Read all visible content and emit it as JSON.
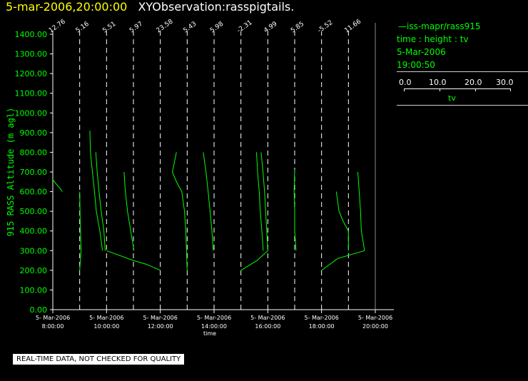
{
  "header": {
    "datetime": "5-mar-2006,20:00:00",
    "plot_name": "XYObservation:rasspigtails."
  },
  "legend": {
    "series": "—iss-mapr/rass915",
    "variables": "time : height : tv",
    "date": "5-Mar-2006",
    "time": "19:00:50",
    "scale_ticks": [
      "0.0",
      "10.0",
      "20.0",
      "30.0"
    ],
    "scale_label": "tv"
  },
  "footer": {
    "qc_note": "REAL-TIME DATA, NOT CHECKED FOR QUALITY"
  },
  "colors": {
    "background": "#000000",
    "trace": "#00ff00",
    "axis": "#ffffff",
    "title_date": "#ffff00"
  },
  "chart_data": {
    "type": "line",
    "ylabel": "915 RASS Altitude (m agl)",
    "xlabel": "time",
    "ylim": [
      0,
      1400
    ],
    "yticks": [
      "0.00",
      "100.00",
      "200.00",
      "300.00",
      "400.00",
      "500.00",
      "600.00",
      "700.00",
      "800.00",
      "900.00",
      "1000.00",
      "1100.00",
      "1200.00",
      "1300.00",
      "1400.00"
    ],
    "xlim": [
      "2006-03-05T08:00",
      "2006-03-05T20:00"
    ],
    "xticks": [
      {
        "t": 8,
        "date": "5- Mar-2006",
        "time": "8:00:00"
      },
      {
        "t": 10,
        "date": "5- Mar-2006",
        "time": "10:00:00"
      },
      {
        "t": 12,
        "date": "5- Mar-2006",
        "time": "12:00:00"
      },
      {
        "t": 14,
        "date": "5- Mar-2006",
        "time": "14:00:00"
      },
      {
        "t": 16,
        "date": "5- Mar-2006",
        "time": "16:00:00"
      },
      {
        "t": 18,
        "date": "5- Mar-2006",
        "time": "18:00:00"
      },
      {
        "t": 20,
        "date": "5- Mar-2006",
        "time": "20:00:00"
      }
    ],
    "tv_scale": [
      0,
      30
    ],
    "profile_times": [
      8,
      9,
      10,
      11,
      12,
      13,
      14,
      15,
      16,
      17,
      18,
      19
    ],
    "profile_labels": [
      "12.76",
      "5.16",
      "5.51",
      "5.97",
      "23.58",
      "5.43",
      "5.98",
      "-2.31",
      "4.99",
      "5.85",
      "-5.52",
      "11.66"
    ],
    "profiles": [
      {
        "base_time": 8,
        "points": [
          [
            0.0,
            660
          ],
          [
            0.12,
            640
          ],
          [
            0.25,
            620
          ],
          [
            0.35,
            600
          ]
        ]
      },
      {
        "base_time": 9,
        "points": [
          [
            0.0,
            600
          ],
          [
            0.02,
            450
          ],
          [
            0.05,
            300
          ],
          [
            0.0,
            200
          ]
        ]
      },
      {
        "base_time": 9,
        "points": [
          [
            0.38,
            910
          ],
          [
            0.4,
            800
          ],
          [
            0.55,
            600
          ],
          [
            0.62,
            500
          ],
          [
            0.75,
            400
          ],
          [
            0.85,
            300
          ]
        ]
      },
      {
        "base_time": 9,
        "points": [
          [
            0.6,
            800
          ],
          [
            0.65,
            700
          ],
          [
            0.72,
            600
          ],
          [
            0.8,
            500
          ],
          [
            0.9,
            400
          ],
          [
            0.95,
            300
          ]
        ]
      },
      {
        "base_time": 10,
        "points": [
          [
            0.0,
            300
          ],
          [
            1.0,
            250
          ],
          [
            1.5,
            230
          ],
          [
            2.0,
            200
          ]
        ]
      },
      {
        "base_time": 10,
        "points": [
          [
            0.65,
            700
          ],
          [
            0.7,
            600
          ],
          [
            0.78,
            500
          ],
          [
            0.9,
            400
          ],
          [
            1.02,
            300
          ]
        ]
      },
      {
        "base_time": 12,
        "points": [
          [
            0.45,
            700
          ],
          [
            0.6,
            800
          ]
        ]
      },
      {
        "base_time": 12,
        "points": [
          [
            0.45,
            700
          ],
          [
            0.6,
            650
          ],
          [
            0.8,
            600
          ],
          [
            0.9,
            500
          ],
          [
            0.95,
            400
          ],
          [
            1.0,
            200
          ]
        ]
      },
      {
        "base_time": 13,
        "points": [
          [
            0.6,
            800
          ],
          [
            0.7,
            700
          ],
          [
            0.78,
            600
          ],
          [
            0.85,
            500
          ],
          [
            0.92,
            400
          ],
          [
            0.97,
            300
          ]
        ]
      },
      {
        "base_time": 15,
        "points": [
          [
            0.0,
            200
          ],
          [
            0.6,
            250
          ],
          [
            1.0,
            300
          ]
        ]
      },
      {
        "base_time": 15,
        "points": [
          [
            0.58,
            800
          ],
          [
            0.62,
            700
          ],
          [
            0.68,
            600
          ],
          [
            0.72,
            500
          ],
          [
            0.78,
            400
          ],
          [
            0.83,
            300
          ]
        ]
      },
      {
        "base_time": 15,
        "points": [
          [
            0.75,
            800
          ],
          [
            0.82,
            700
          ],
          [
            0.88,
            600
          ],
          [
            0.92,
            500
          ],
          [
            0.96,
            400
          ],
          [
            1.0,
            300
          ]
        ]
      },
      {
        "base_time": 17,
        "points": [
          [
            0.0,
            710
          ],
          [
            -0.02,
            600
          ],
          [
            0.0,
            500
          ],
          [
            0.0,
            400
          ],
          [
            0.05,
            300
          ]
        ]
      },
      {
        "base_time": 18,
        "points": [
          [
            0.0,
            200
          ],
          [
            0.6,
            260
          ],
          [
            1.6,
            300
          ]
        ]
      },
      {
        "base_time": 18,
        "points": [
          [
            0.55,
            600
          ],
          [
            0.65,
            500
          ],
          [
            0.8,
            450
          ],
          [
            1.0,
            400
          ],
          [
            1.0,
            300
          ]
        ]
      },
      {
        "base_time": 19,
        "points": [
          [
            0.35,
            700
          ],
          [
            0.4,
            600
          ],
          [
            0.45,
            500
          ],
          [
            0.48,
            400
          ],
          [
            0.6,
            300
          ]
        ]
      }
    ]
  }
}
